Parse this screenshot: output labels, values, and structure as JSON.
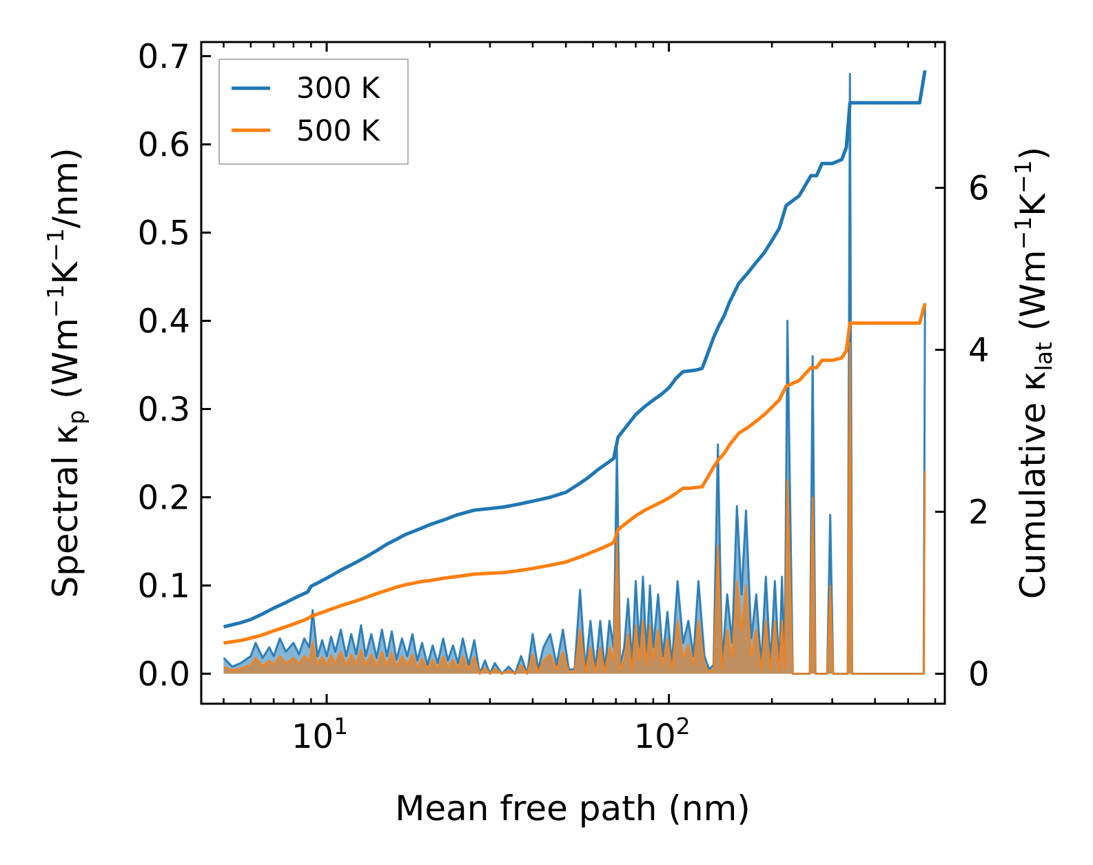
{
  "chart_data": {
    "type": "line",
    "x_scale": "log",
    "xlim": [
      4.3,
      640
    ],
    "ylim": [
      -0.034,
      0.716
    ],
    "y2lim": [
      -0.37,
      7.8
    ],
    "xlabel": "Mean free path (nm)",
    "ylabel": {
      "prefix": "Spectral κ",
      "sub": "p",
      "text": " (Wm",
      "sup1": "−1",
      "text2": "K",
      "sup2": "−1",
      "text3": "/nm)"
    },
    "y2label": {
      "prefix": "Cumulative κ",
      "sub": "lat",
      "text": " (Wm",
      "sup1": "−1",
      "text2": "K",
      "sup2": "−1",
      "text3": ")"
    },
    "x_ticks": [
      {
        "value": 10,
        "base": "10",
        "exp": "1"
      },
      {
        "value": 100,
        "base": "10",
        "exp": "2"
      }
    ],
    "y_ticks": [
      {
        "value": 0.0,
        "label": "0.0"
      },
      {
        "value": 0.1,
        "label": "0.1"
      },
      {
        "value": 0.2,
        "label": "0.2"
      },
      {
        "value": 0.3,
        "label": "0.3"
      },
      {
        "value": 0.4,
        "label": "0.4"
      },
      {
        "value": 0.5,
        "label": "0.5"
      },
      {
        "value": 0.6,
        "label": "0.6"
      },
      {
        "value": 0.7,
        "label": "0.7"
      }
    ],
    "y2_ticks": [
      {
        "value": 0,
        "label": "0"
      },
      {
        "value": 2,
        "label": "2"
      },
      {
        "value": 4,
        "label": "4"
      },
      {
        "value": 6,
        "label": "6"
      }
    ],
    "legend": {
      "position": "top-left",
      "entries": [
        {
          "name": "300 K",
          "color": "#1f77b4"
        },
        {
          "name": "500 K",
          "color": "#ff7f0e"
        }
      ]
    },
    "series": [
      {
        "name": "300 K",
        "color": "#1f77b4",
        "axis": "right",
        "kind": "cumulative",
        "x": [
          5.0,
          5.6,
          6.0,
          6.5,
          7.0,
          7.6,
          8.2,
          8.8,
          9.0,
          9.6,
          10.2,
          11.0,
          12.0,
          13.0,
          14.0,
          15.0,
          16.0,
          17.0,
          18.0,
          19.0,
          20.0,
          22.0,
          24.0,
          27.0,
          30.0,
          33.0,
          36.0,
          40.0,
          45.0,
          50.0,
          54.0,
          58.0,
          62.0,
          66.0,
          69.0,
          71.0,
          75.0,
          80.0,
          85.0,
          90.0,
          95.0,
          100.0,
          105.0,
          110.0,
          115.0,
          120.0,
          125.0,
          130.0,
          135.0,
          140.0,
          145.0,
          150.0,
          160.0,
          170.0,
          180.0,
          190.0,
          200.0,
          210.0,
          220.0,
          240.0,
          260.0,
          270.0,
          280.0,
          300.0,
          320.0,
          330.0,
          338.0,
          342.0,
          360.0,
          400.0,
          450.0,
          500.0,
          540.0,
          560.0
        ],
        "y": [
          0.58,
          0.63,
          0.67,
          0.74,
          0.81,
          0.88,
          0.95,
          1.01,
          1.08,
          1.14,
          1.2,
          1.28,
          1.36,
          1.44,
          1.52,
          1.6,
          1.66,
          1.72,
          1.76,
          1.8,
          1.84,
          1.9,
          1.96,
          2.02,
          2.04,
          2.06,
          2.09,
          2.13,
          2.18,
          2.24,
          2.33,
          2.42,
          2.52,
          2.6,
          2.66,
          2.92,
          3.05,
          3.2,
          3.3,
          3.38,
          3.45,
          3.53,
          3.65,
          3.73,
          3.74,
          3.75,
          3.77,
          3.96,
          4.15,
          4.3,
          4.42,
          4.58,
          4.82,
          4.95,
          5.08,
          5.2,
          5.35,
          5.5,
          5.78,
          5.9,
          6.15,
          6.15,
          6.3,
          6.3,
          6.35,
          6.5,
          7.05,
          7.05,
          7.05,
          7.05,
          7.05,
          7.05,
          7.05,
          7.45
        ]
      },
      {
        "name": "500 K",
        "color": "#ff7f0e",
        "axis": "right",
        "kind": "cumulative",
        "x": [
          5.0,
          5.6,
          6.0,
          6.5,
          7.0,
          7.6,
          8.2,
          8.8,
          9.0,
          9.6,
          10.2,
          11.0,
          12.0,
          13.0,
          14.0,
          15.0,
          16.0,
          17.0,
          18.0,
          19.0,
          20.0,
          22.0,
          24.0,
          27.0,
          30.0,
          33.0,
          36.0,
          40.0,
          45.0,
          50.0,
          54.0,
          58.0,
          62.0,
          66.0,
          69.0,
          71.0,
          75.0,
          80.0,
          85.0,
          90.0,
          95.0,
          100.0,
          105.0,
          110.0,
          115.0,
          120.0,
          125.0,
          130.0,
          135.0,
          140.0,
          145.0,
          150.0,
          160.0,
          170.0,
          180.0,
          190.0,
          200.0,
          210.0,
          220.0,
          240.0,
          260.0,
          270.0,
          280.0,
          300.0,
          320.0,
          330.0,
          338.0,
          342.0,
          360.0,
          400.0,
          450.0,
          500.0,
          540.0,
          560.0
        ],
        "y": [
          0.38,
          0.41,
          0.44,
          0.48,
          0.53,
          0.58,
          0.63,
          0.68,
          0.71,
          0.75,
          0.79,
          0.84,
          0.89,
          0.94,
          0.99,
          1.03,
          1.07,
          1.1,
          1.12,
          1.14,
          1.15,
          1.18,
          1.2,
          1.23,
          1.24,
          1.25,
          1.27,
          1.3,
          1.34,
          1.38,
          1.43,
          1.48,
          1.53,
          1.58,
          1.62,
          1.78,
          1.86,
          1.95,
          2.02,
          2.07,
          2.12,
          2.17,
          2.23,
          2.29,
          2.29,
          2.3,
          2.31,
          2.43,
          2.55,
          2.65,
          2.72,
          2.82,
          2.97,
          3.04,
          3.12,
          3.2,
          3.29,
          3.38,
          3.55,
          3.62,
          3.78,
          3.78,
          3.87,
          3.87,
          3.9,
          3.99,
          4.33,
          4.33,
          4.33,
          4.33,
          4.33,
          4.33,
          4.33,
          4.57
        ]
      },
      {
        "name": "300 K spectral",
        "color": "#1f77b4",
        "axis": "left",
        "kind": "spectral",
        "x": [
          5.0,
          5.3,
          5.6,
          6.0,
          6.2,
          6.5,
          6.8,
          7.0,
          7.3,
          7.6,
          8.0,
          8.3,
          8.6,
          8.9,
          9.1,
          9.4,
          9.7,
          10.0,
          10.3,
          10.6,
          11.0,
          11.4,
          11.8,
          12.2,
          12.6,
          13.0,
          13.5,
          14.0,
          14.5,
          15.0,
          15.5,
          16.0,
          16.6,
          17.2,
          17.8,
          18.4,
          19.0,
          19.7,
          20.4,
          21.1,
          21.9,
          22.6,
          23.4,
          24.2,
          25.0,
          26.0,
          27.0,
          28.0,
          29.0,
          30.0,
          31.0,
          32.5,
          34.0,
          35.5,
          37.0,
          38.5,
          40.0,
          41.5,
          43.0,
          45.0,
          47.0,
          49.0,
          51.0,
          53.0,
          55.0,
          57.0,
          59.0,
          61.0,
          63.0,
          65.0,
          67.0,
          69.0,
          70.5,
          72.0,
          74.0,
          76.0,
          78.0,
          80.0,
          82.0,
          84.0,
          86.0,
          88.0,
          90.0,
          93.0,
          96.0,
          99.0,
          102.0,
          106.0,
          110.0,
          114.0,
          118.0,
          122.0,
          127.0,
          131.0,
          135.0,
          139.0,
          143.0,
          148.0,
          153.0,
          158.0,
          163.0,
          168.0,
          174.0,
          180.0,
          186.0,
          192.0,
          198.0,
          204.0,
          210.0,
          214.0,
          218.0,
          222.0,
          230.0,
          240.0,
          250.0,
          258.0,
          263.0,
          268.0,
          280.0,
          290.0,
          296.0,
          302.0,
          315.0,
          325.0,
          333.0,
          338.0,
          343.0,
          360.0,
          400.0,
          450.0,
          500.0,
          540.0,
          555.0,
          560.0
        ],
        "y": [
          0.018,
          0.008,
          0.012,
          0.02,
          0.035,
          0.018,
          0.03,
          0.02,
          0.04,
          0.025,
          0.035,
          0.022,
          0.04,
          0.03,
          0.072,
          0.02,
          0.038,
          0.02,
          0.042,
          0.025,
          0.05,
          0.02,
          0.045,
          0.022,
          0.055,
          0.02,
          0.045,
          0.018,
          0.05,
          0.02,
          0.048,
          0.016,
          0.04,
          0.02,
          0.045,
          0.015,
          0.035,
          0.01,
          0.032,
          0.012,
          0.04,
          0.015,
          0.032,
          0.012,
          0.04,
          0.01,
          0.038,
          0.0,
          0.015,
          0.0,
          0.012,
          0.0,
          0.008,
          0.0,
          0.02,
          0.0,
          0.045,
          0.005,
          0.03,
          0.045,
          0.01,
          0.05,
          0.005,
          0.005,
          0.095,
          0.005,
          0.06,
          0.005,
          0.06,
          0.005,
          0.06,
          0.03,
          0.255,
          0.01,
          0.03,
          0.085,
          0.01,
          0.105,
          0.03,
          0.11,
          0.02,
          0.1,
          0.03,
          0.09,
          0.02,
          0.07,
          0.01,
          0.105,
          0.035,
          0.06,
          0.02,
          0.105,
          0.02,
          0.005,
          0.01,
          0.26,
          0.01,
          0.09,
          0.035,
          0.19,
          0.09,
          0.185,
          0.04,
          0.09,
          0.01,
          0.11,
          0.01,
          0.105,
          0.005,
          0.11,
          0.01,
          0.4,
          0.0,
          0.0,
          0.0,
          0.0,
          0.36,
          0.0,
          0.0,
          0.0,
          0.18,
          0.0,
          0.0,
          0.0,
          0.0,
          0.68,
          0.0,
          0.0,
          0.0,
          0.0,
          0.0,
          0.0,
          0.0,
          0.42
        ]
      },
      {
        "name": "500 K spectral",
        "color": "#ff7f0e",
        "axis": "left",
        "kind": "spectral",
        "x": [
          5.0,
          5.3,
          5.6,
          6.0,
          6.2,
          6.5,
          6.8,
          7.0,
          7.3,
          7.6,
          8.0,
          8.3,
          8.6,
          8.9,
          9.1,
          9.4,
          9.7,
          10.0,
          10.3,
          10.6,
          11.0,
          11.4,
          11.8,
          12.2,
          12.6,
          13.0,
          13.5,
          14.0,
          14.5,
          15.0,
          15.5,
          16.0,
          16.6,
          17.2,
          17.8,
          18.4,
          19.0,
          19.7,
          20.4,
          21.1,
          21.9,
          22.6,
          23.4,
          24.2,
          25.0,
          26.0,
          27.0,
          28.0,
          29.0,
          30.0,
          31.0,
          32.5,
          34.0,
          35.5,
          37.0,
          38.5,
          40.0,
          41.5,
          43.0,
          45.0,
          47.0,
          49.0,
          51.0,
          53.0,
          55.0,
          57.0,
          59.0,
          61.0,
          63.0,
          65.0,
          67.0,
          69.0,
          70.5,
          72.0,
          74.0,
          76.0,
          78.0,
          80.0,
          82.0,
          84.0,
          86.0,
          88.0,
          90.0,
          93.0,
          96.0,
          99.0,
          102.0,
          106.0,
          110.0,
          114.0,
          118.0,
          122.0,
          127.0,
          131.0,
          135.0,
          139.0,
          143.0,
          148.0,
          153.0,
          158.0,
          163.0,
          168.0,
          174.0,
          180.0,
          186.0,
          192.0,
          198.0,
          204.0,
          210.0,
          214.0,
          218.0,
          222.0,
          230.0,
          240.0,
          250.0,
          258.0,
          263.0,
          268.0,
          280.0,
          290.0,
          296.0,
          302.0,
          315.0,
          325.0,
          333.0,
          338.0,
          343.0,
          360.0,
          400.0,
          450.0,
          500.0,
          540.0,
          555.0,
          560.0
        ],
        "y": [
          0.008,
          0.004,
          0.006,
          0.01,
          0.018,
          0.009,
          0.015,
          0.01,
          0.02,
          0.012,
          0.018,
          0.011,
          0.02,
          0.015,
          0.036,
          0.01,
          0.019,
          0.01,
          0.021,
          0.012,
          0.025,
          0.01,
          0.022,
          0.011,
          0.027,
          0.01,
          0.022,
          0.009,
          0.025,
          0.01,
          0.024,
          0.008,
          0.02,
          0.01,
          0.022,
          0.007,
          0.017,
          0.005,
          0.016,
          0.006,
          0.02,
          0.007,
          0.016,
          0.006,
          0.02,
          0.005,
          0.019,
          0.0,
          0.007,
          0.0,
          0.006,
          0.0,
          0.004,
          0.0,
          0.01,
          0.0,
          0.022,
          0.002,
          0.015,
          0.022,
          0.005,
          0.025,
          0.002,
          0.002,
          0.05,
          0.002,
          0.03,
          0.002,
          0.03,
          0.002,
          0.03,
          0.015,
          0.15,
          0.005,
          0.015,
          0.045,
          0.005,
          0.055,
          0.015,
          0.06,
          0.01,
          0.055,
          0.015,
          0.05,
          0.01,
          0.04,
          0.005,
          0.06,
          0.018,
          0.033,
          0.01,
          0.06,
          0.01,
          0.002,
          0.005,
          0.145,
          0.005,
          0.05,
          0.018,
          0.105,
          0.05,
          0.1,
          0.02,
          0.05,
          0.005,
          0.06,
          0.005,
          0.06,
          0.002,
          0.06,
          0.005,
          0.22,
          0.0,
          0.0,
          0.0,
          0.0,
          0.2,
          0.0,
          0.0,
          0.0,
          0.1,
          0.0,
          0.0,
          0.0,
          0.0,
          0.375,
          0.0,
          0.0,
          0.0,
          0.0,
          0.0,
          0.0,
          0.0,
          0.23
        ]
      }
    ]
  }
}
